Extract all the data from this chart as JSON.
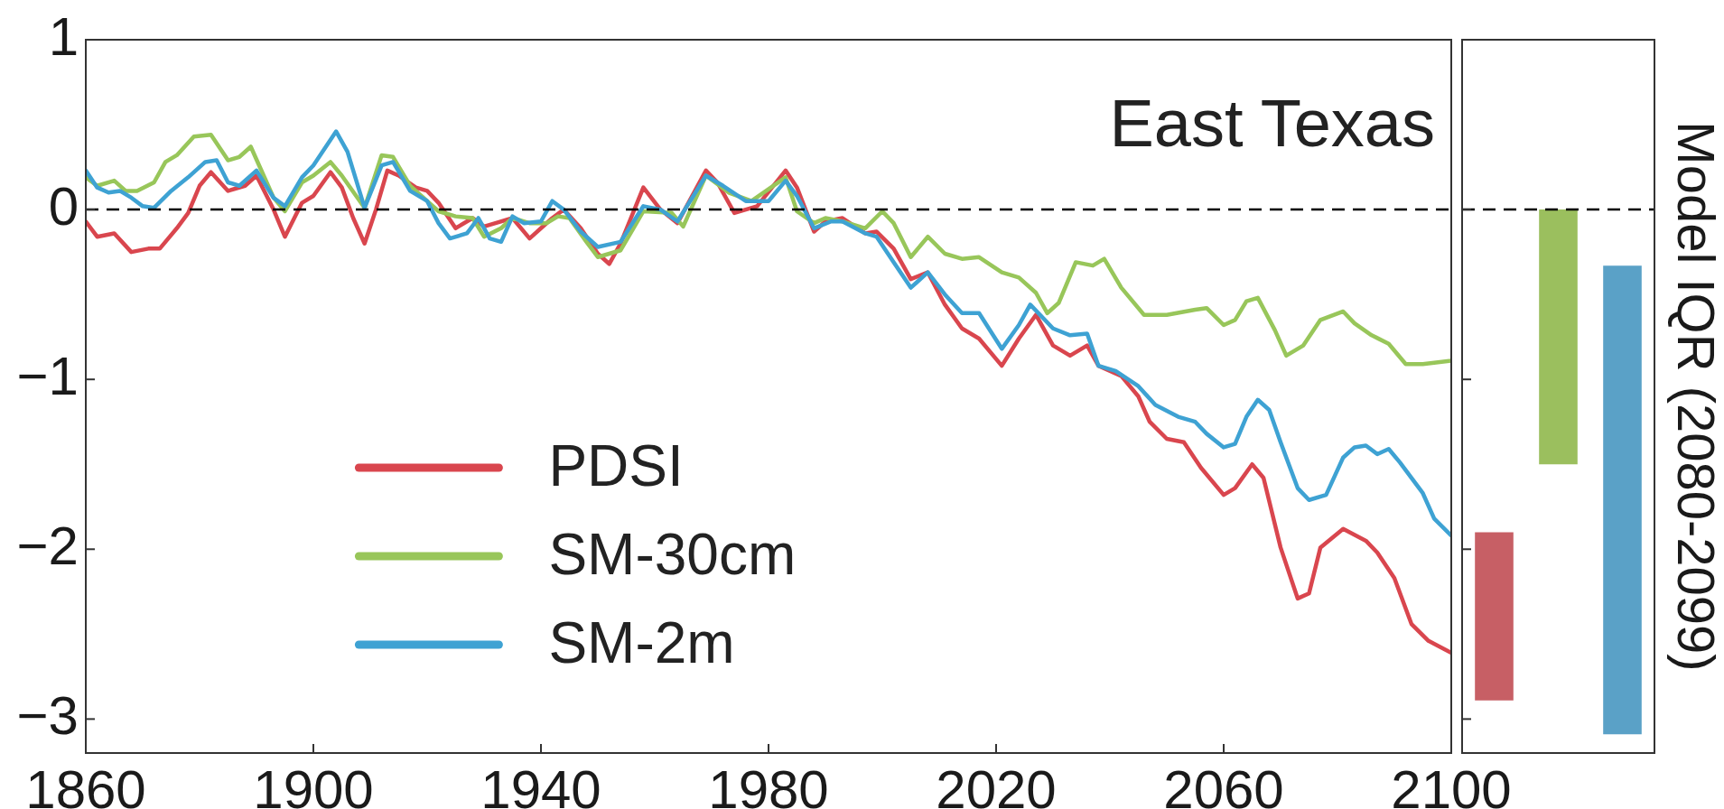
{
  "chart_data": [
    {
      "type": "line",
      "title": "East Texas",
      "xlim": [
        1860,
        2100
      ],
      "xticks": [
        1860,
        1900,
        1940,
        1980,
        2020,
        2060,
        2100
      ],
      "ylim": [
        -3.2,
        1
      ],
      "yticks": [
        1,
        0,
        {
          "value": -1,
          "label": "−1"
        },
        {
          "value": -2,
          "label": "−2"
        },
        {
          "value": -3,
          "label": "−3"
        }
      ],
      "legend": "bottom left",
      "line_style": "solid",
      "ref_lines": [
        {
          "axis": "y",
          "value": 0,
          "color": "#000000",
          "line_style": "dashed"
        }
      ],
      "series": [
        {
          "name": "PDSI",
          "color": "#d9464e",
          "x": [
            1860,
            1862,
            1865,
            1868,
            1871,
            1873,
            1876,
            1878,
            1880,
            1882,
            1885,
            1888,
            1890,
            1893,
            1895,
            1898,
            1900,
            1903,
            1905,
            1907,
            1909,
            1911,
            1913,
            1915,
            1918,
            1920,
            1922,
            1925,
            1928,
            1930,
            1932,
            1935,
            1938,
            1940,
            1942,
            1944,
            1947,
            1950,
            1952,
            1954,
            1958,
            1961,
            1964,
            1969,
            1971,
            1974,
            1978,
            1983,
            1985,
            1988,
            1990,
            1993,
            1997,
            1999,
            2002,
            2005,
            2008,
            2011,
            2014,
            2017,
            2021,
            2024,
            2027,
            2030,
            2033,
            2036,
            2038,
            2042,
            2045,
            2047,
            2050,
            2053,
            2056,
            2060,
            2062,
            2065,
            2067,
            2070,
            2073,
            2075,
            2077,
            2081,
            2085,
            2087,
            2090,
            2093,
            2096,
            2100
          ],
          "values": [
            -0.07,
            -0.16,
            -0.14,
            -0.25,
            -0.23,
            -0.23,
            -0.11,
            -0.02,
            0.14,
            0.22,
            0.11,
            0.14,
            0.2,
            0.0,
            -0.16,
            0.04,
            0.08,
            0.22,
            0.13,
            -0.05,
            -0.2,
            0.0,
            0.23,
            0.2,
            0.13,
            0.11,
            0.04,
            -0.11,
            -0.05,
            -0.1,
            -0.08,
            -0.05,
            -0.17,
            -0.11,
            -0.05,
            0.0,
            -0.11,
            -0.26,
            -0.32,
            -0.2,
            0.13,
            0.0,
            -0.08,
            0.23,
            0.16,
            -0.02,
            0.02,
            0.23,
            0.13,
            -0.13,
            -0.07,
            -0.05,
            -0.14,
            -0.13,
            -0.23,
            -0.41,
            -0.37,
            -0.56,
            -0.7,
            -0.76,
            -0.92,
            -0.76,
            -0.62,
            -0.8,
            -0.86,
            -0.8,
            -0.92,
            -0.98,
            -1.1,
            -1.25,
            -1.35,
            -1.37,
            -1.52,
            -1.68,
            -1.64,
            -1.5,
            -1.58,
            -1.99,
            -2.29,
            -2.26,
            -1.99,
            -1.88,
            -1.95,
            -2.02,
            -2.17,
            -2.44,
            -2.54,
            -2.61
          ]
        },
        {
          "name": "SM-30cm",
          "color": "#98c65a",
          "x": [
            1860,
            1862,
            1865,
            1867,
            1869,
            1872,
            1874,
            1876,
            1879,
            1882,
            1885,
            1887,
            1889,
            1891,
            1893,
            1895,
            1898,
            1900,
            1903,
            1905,
            1909,
            1912,
            1914,
            1917,
            1920,
            1922,
            1925,
            1928,
            1930,
            1933,
            1935,
            1938,
            1941,
            1943,
            1945,
            1948,
            1950,
            1954,
            1958,
            1963,
            1965,
            1969,
            1973,
            1977,
            1983,
            1985,
            1988,
            1990,
            1993,
            1997,
            2000,
            2002,
            2005,
            2008,
            2011,
            2014,
            2017,
            2021,
            2024,
            2027,
            2029,
            2031,
            2034,
            2037,
            2039,
            2042,
            2046,
            2050,
            2055,
            2057,
            2060,
            2062,
            2064,
            2066,
            2069,
            2071,
            2074,
            2077,
            2081,
            2083,
            2086,
            2089,
            2092,
            2095,
            2100
          ],
          "values": [
            0.19,
            0.14,
            0.17,
            0.11,
            0.11,
            0.16,
            0.28,
            0.32,
            0.43,
            0.44,
            0.29,
            0.31,
            0.37,
            0.22,
            0.07,
            -0.01,
            0.16,
            0.2,
            0.28,
            0.2,
            0.01,
            0.32,
            0.31,
            0.14,
            0.05,
            -0.01,
            -0.04,
            -0.05,
            -0.16,
            -0.11,
            -0.05,
            -0.08,
            -0.08,
            -0.04,
            -0.05,
            -0.19,
            -0.28,
            -0.24,
            -0.01,
            -0.02,
            -0.1,
            0.2,
            0.1,
            0.05,
            0.19,
            -0.01,
            -0.08,
            -0.05,
            -0.07,
            -0.11,
            -0.01,
            -0.08,
            -0.28,
            -0.16,
            -0.26,
            -0.29,
            -0.28,
            -0.37,
            -0.4,
            -0.49,
            -0.61,
            -0.55,
            -0.31,
            -0.33,
            -0.29,
            -0.46,
            -0.62,
            -0.62,
            -0.59,
            -0.58,
            -0.68,
            -0.65,
            -0.54,
            -0.52,
            -0.71,
            -0.86,
            -0.8,
            -0.65,
            -0.6,
            -0.67,
            -0.74,
            -0.79,
            -0.91,
            -0.91,
            -0.89
          ]
        },
        {
          "name": "SM-2m",
          "color": "#3ea2d3",
          "x": [
            1860,
            1862,
            1864,
            1866,
            1868,
            1870,
            1872,
            1875,
            1878,
            1881,
            1883,
            1885,
            1887,
            1890,
            1893,
            1895,
            1898,
            1900,
            1904,
            1906,
            1909,
            1912,
            1914,
            1917,
            1920,
            1922,
            1924,
            1927,
            1929,
            1931,
            1933,
            1935,
            1937,
            1940,
            1942,
            1944,
            1947,
            1950,
            1954,
            1958,
            1961,
            1964,
            1969,
            1972,
            1976,
            1980,
            1983,
            1985,
            1988,
            1991,
            1993,
            1997,
            1999,
            2002,
            2005,
            2008,
            2011,
            2014,
            2017,
            2021,
            2024,
            2026,
            2030,
            2033,
            2036,
            2038,
            2041,
            2045,
            2048,
            2052,
            2055,
            2057,
            2060,
            2062,
            2064,
            2066,
            2068,
            2070,
            2073,
            2075,
            2078,
            2081,
            2083,
            2085,
            2087,
            2089,
            2091,
            2095,
            2097,
            2100
          ],
          "values": [
            0.23,
            0.13,
            0.1,
            0.11,
            0.07,
            0.02,
            0.01,
            0.11,
            0.19,
            0.28,
            0.29,
            0.16,
            0.14,
            0.23,
            0.07,
            0.02,
            0.19,
            0.26,
            0.46,
            0.34,
            0.01,
            0.26,
            0.28,
            0.11,
            0.05,
            -0.08,
            -0.17,
            -0.14,
            -0.05,
            -0.17,
            -0.19,
            -0.04,
            -0.08,
            -0.07,
            0.05,
            0.0,
            -0.13,
            -0.22,
            -0.19,
            0.02,
            0.0,
            -0.07,
            0.2,
            0.14,
            0.05,
            0.05,
            0.17,
            0.08,
            -0.11,
            -0.07,
            -0.07,
            -0.14,
            -0.16,
            -0.31,
            -0.46,
            -0.37,
            -0.5,
            -0.61,
            -0.61,
            -0.82,
            -0.68,
            -0.56,
            -0.7,
            -0.74,
            -0.73,
            -0.92,
            -0.95,
            -1.04,
            -1.15,
            -1.22,
            -1.25,
            -1.32,
            -1.4,
            -1.38,
            -1.22,
            -1.12,
            -1.18,
            -1.37,
            -1.64,
            -1.71,
            -1.68,
            -1.46,
            -1.4,
            -1.39,
            -1.44,
            -1.41,
            -1.49,
            -1.67,
            -1.82,
            -1.92
          ]
        }
      ]
    },
    {
      "type": "bar",
      "ylabel": "Model IQR (2080-2099)",
      "categories": [
        null,
        null,
        null
      ],
      "values": [
        0.99,
        1.5,
        2.76
      ],
      "base": [
        -2.89,
        -1.5,
        -3.09
      ],
      "colors": [
        "#c75f65",
        "#9bbf5e",
        "#5aa1c7"
      ],
      "ylim": [
        -3.2,
        1
      ],
      "yticks": [
        1,
        0,
        -1,
        -2,
        -3
      ],
      "tick_labels": false,
      "ref_lines": [
        {
          "axis": "y",
          "value": 0,
          "color": "#000000",
          "line_style": "dashed"
        }
      ]
    }
  ]
}
